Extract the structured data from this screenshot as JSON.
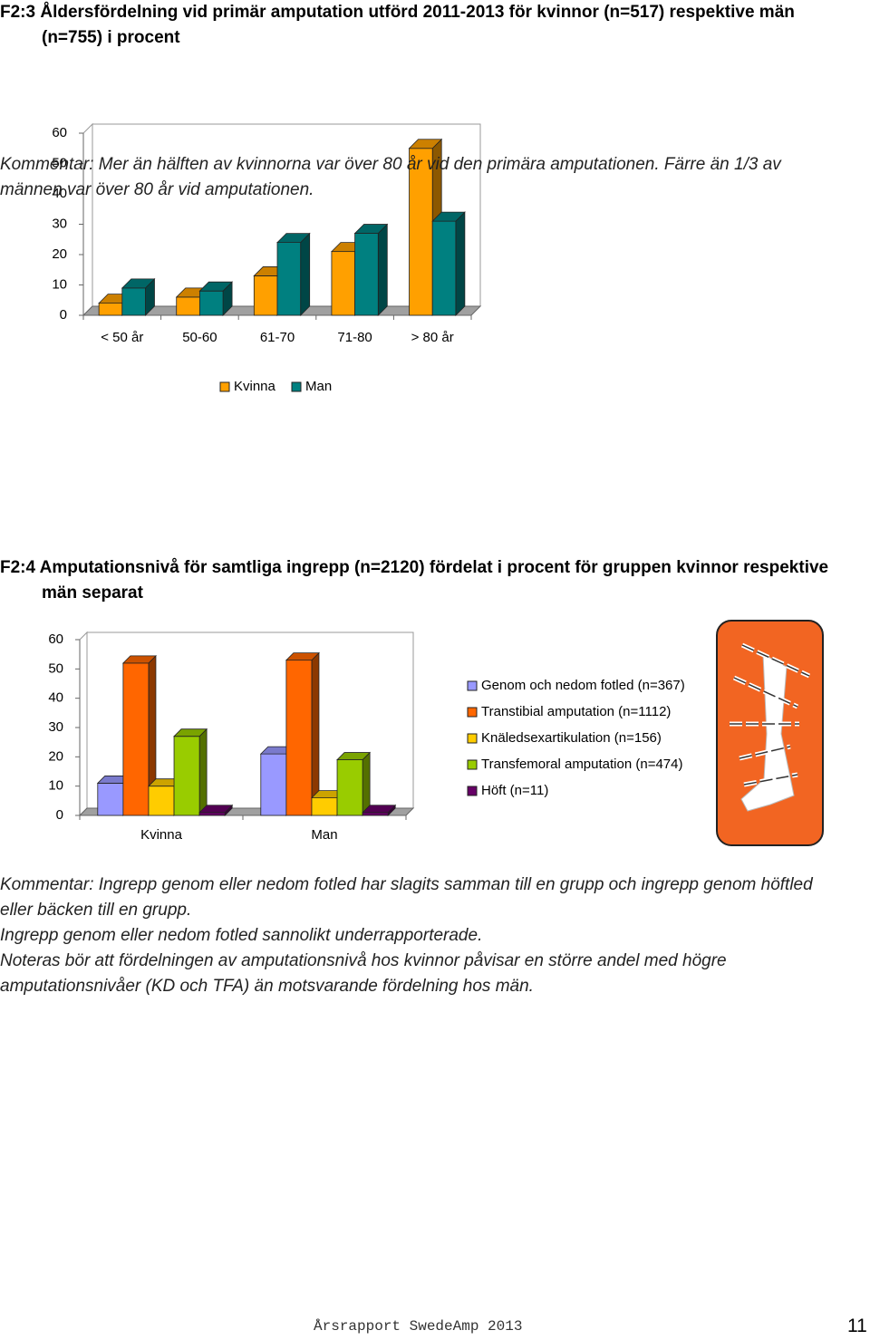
{
  "chart_data": [
    {
      "type": "bar",
      "title": "F2:3 Åldersfördelning vid primär amputation utförd 2011-2013 för kvinnor (n=517) respektive män (n=755) i procent",
      "categories": [
        "< 50 år",
        "50-60",
        "61-70",
        "71-80",
        "> 80 år"
      ],
      "series": [
        {
          "name": "Kvinna",
          "color": "#ffa000",
          "values": [
            4,
            6,
            13,
            21,
            55
          ]
        },
        {
          "name": "Man",
          "color": "#008080",
          "values": [
            9,
            8,
            24,
            27,
            31
          ]
        }
      ],
      "ylim": [
        0,
        60
      ],
      "yticks": [
        0,
        10,
        20,
        30,
        40,
        50,
        60
      ],
      "legend": "bottom"
    },
    {
      "type": "bar",
      "title": "F2:4 Amputationsnivå för samtliga ingrepp (n=2120) fördelat i procent för gruppen kvinnor respektive män separat",
      "categories": [
        "Kvinna",
        "Man"
      ],
      "series": [
        {
          "name": "Genom och nedom fotled (n=367)",
          "color": "#9999ff",
          "values": [
            11,
            21
          ]
        },
        {
          "name": "Transtibial amputation (n=1112)",
          "color": "#ff6600",
          "values": [
            52,
            53
          ]
        },
        {
          "name": "Knäledsexartikulation (n=156)",
          "color": "#ffcc00",
          "values": [
            10,
            6
          ]
        },
        {
          "name": "Transfemoral amputation (n=474)",
          "color": "#99cc00",
          "values": [
            27,
            19
          ]
        },
        {
          "name": "Höft (n=11)",
          "color": "#660066",
          "values": [
            1,
            1
          ]
        }
      ],
      "ylim": [
        0,
        60
      ],
      "yticks": [
        0,
        10,
        20,
        30,
        40,
        50,
        60
      ],
      "legend": "right"
    }
  ],
  "comments": [
    [
      "Kommentar: Mer än hälften av kvinnorna var över 80 år vid den primära amputationen. Färre än 1/3 av männen var över 80 år vid amputationen."
    ],
    [
      "Kommentar: Ingrepp genom eller nedom fotled har slagits samman till en grupp och ingrepp genom höftled eller bäcken till en grupp.",
      "Ingrepp genom eller nedom fotled sannolikt underrapporterade.",
      "Noteras bör att fördelningen av amputationsnivå hos kvinnor påvisar en större andel med högre amputationsnivåer (KD och TFA) än motsvarande fördelning hos män."
    ]
  ],
  "footer": {
    "text": "Årsrapport SwedeAmp 2013",
    "page": "11"
  }
}
